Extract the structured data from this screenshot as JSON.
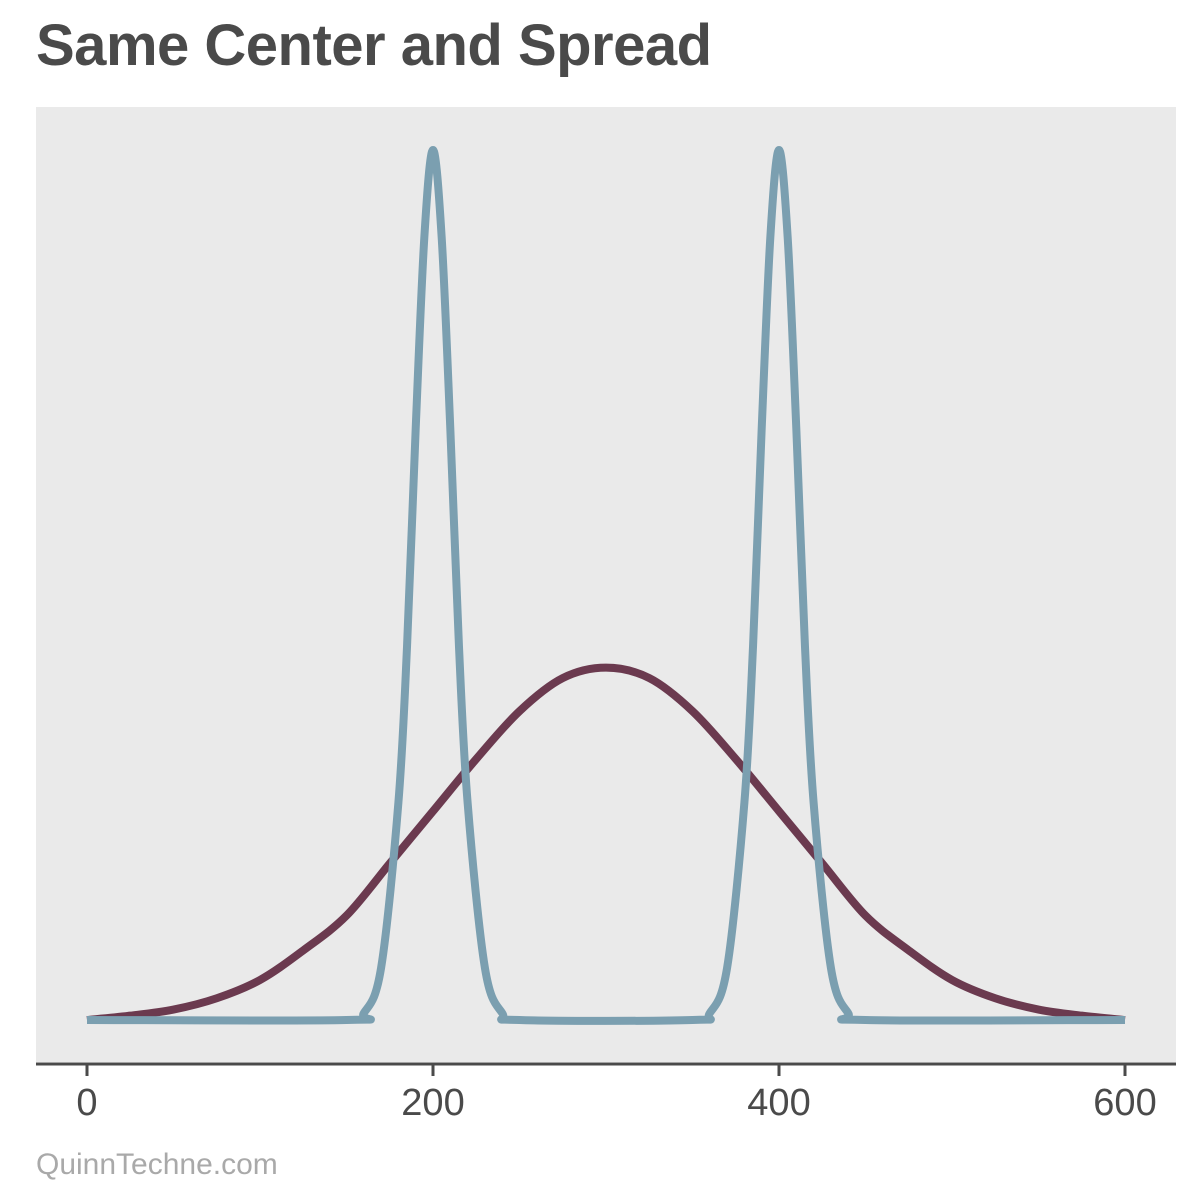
{
  "title": "Same Center and Spread",
  "footer": "QuinnTechne.com",
  "colors": {
    "panel": "#eaeaea",
    "axis": "#4a4a4a",
    "unimodal": "#6b3a4f",
    "bimodal": "#7b9fb0"
  },
  "chart_data": {
    "type": "line",
    "title": "Same Center and Spread",
    "xlabel": "",
    "ylabel": "",
    "xlim": [
      0,
      600
    ],
    "ylim": [
      0,
      1
    ],
    "x_ticks": [
      "0",
      "200",
      "400",
      "600"
    ],
    "grid": false,
    "series": [
      {
        "key": "unimodal",
        "x": [
          0,
          25,
          50,
          75,
          100,
          125,
          150,
          175,
          200,
          225,
          250,
          275,
          300,
          325,
          350,
          375,
          400,
          425,
          450,
          475,
          500,
          525,
          550,
          575,
          600
        ],
        "y": [
          0,
          0.005,
          0.012,
          0.025,
          0.046,
          0.08,
          0.12,
          0.18,
          0.24,
          0.3,
          0.355,
          0.393,
          0.405,
          0.393,
          0.355,
          0.3,
          0.24,
          0.18,
          0.12,
          0.08,
          0.046,
          0.025,
          0.012,
          0.005,
          0
        ]
      },
      {
        "key": "bimodal",
        "x": [
          0,
          150,
          160,
          170,
          180,
          185,
          190,
          195,
          200,
          205,
          210,
          215,
          220,
          230,
          240,
          250,
          350,
          360,
          370,
          380,
          385,
          390,
          395,
          400,
          405,
          410,
          415,
          420,
          430,
          440,
          450,
          600
        ],
        "y": [
          0,
          0,
          0.008,
          0.06,
          0.25,
          0.43,
          0.68,
          0.9,
          1.0,
          0.9,
          0.68,
          0.43,
          0.25,
          0.06,
          0.008,
          0,
          0,
          0.008,
          0.06,
          0.25,
          0.43,
          0.68,
          0.9,
          1.0,
          0.9,
          0.68,
          0.43,
          0.25,
          0.06,
          0.008,
          0,
          0
        ]
      }
    ]
  }
}
